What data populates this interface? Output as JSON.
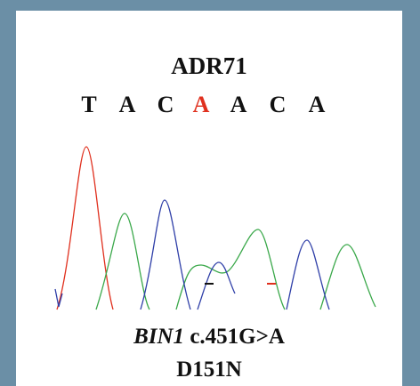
{
  "header": {
    "title": "ADR71"
  },
  "sequence": {
    "bases": [
      "T",
      "A",
      "C",
      "A",
      "A",
      "C",
      "A"
    ]
  },
  "caption": {
    "gene": "BIN1",
    "variant": " c.451G>A",
    "protein": "D151N"
  }
}
